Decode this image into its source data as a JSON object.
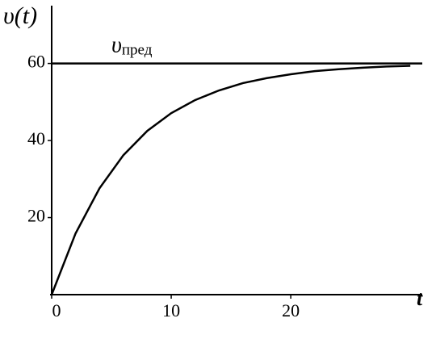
{
  "chart_data": {
    "type": "line",
    "y_label": "υ(t)",
    "x_label": "t",
    "x": [
      0,
      2,
      4,
      6,
      8,
      10,
      12,
      14,
      16,
      18,
      20,
      22,
      24,
      26,
      28,
      30
    ],
    "series": [
      {
        "color": "#000000",
        "values": [
          0,
          15.9,
          27.6,
          36.2,
          42.5,
          47.1,
          50.5,
          53.0,
          54.9,
          56.2,
          57.2,
          58.0,
          58.5,
          58.9,
          59.2,
          59.4
        ]
      }
    ],
    "hline": {
      "value": 60,
      "xlim": [
        0,
        31
      ],
      "label": "υ",
      "label_sub": "пред",
      "label_x": 5
    },
    "xlim": [
      0,
      31
    ],
    "ylim": [
      0,
      75
    ],
    "xticks": [
      0,
      10,
      20
    ],
    "yticks": [
      20,
      40,
      60
    ],
    "grid": false
  }
}
